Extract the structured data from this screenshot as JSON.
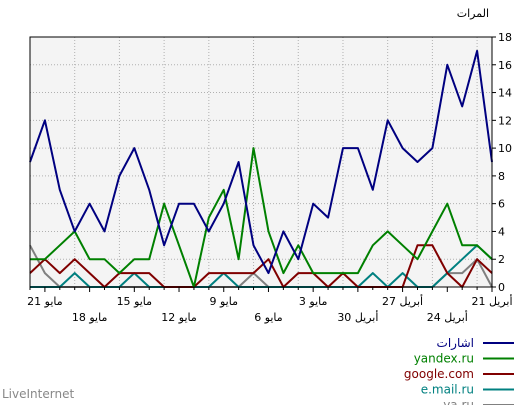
{
  "chart_data": {
    "type": "line",
    "ylabel": "المرات",
    "ylim": [
      0,
      18
    ],
    "yticks": [
      0,
      2,
      4,
      6,
      8,
      10,
      12,
      14,
      16,
      18
    ],
    "grid": true,
    "legend_position": "bottom-right",
    "x_top_labels": [
      {
        "i": 0,
        "text": "21 أبريل"
      },
      {
        "i": 6,
        "text": "27 أبريل"
      },
      {
        "i": 12,
        "text": "3 مايو"
      },
      {
        "i": 18,
        "text": "9 مايو"
      },
      {
        "i": 24,
        "text": "15 مايو"
      },
      {
        "i": 30,
        "text": "21 مايو"
      }
    ],
    "x_bottom_labels": [
      {
        "i": 3,
        "text": "24 أبريل"
      },
      {
        "i": 9,
        "text": "30 أبريل"
      },
      {
        "i": 15,
        "text": "6 مايو"
      },
      {
        "i": 21,
        "text": "12 مايو"
      },
      {
        "i": 27,
        "text": "18 مايو"
      }
    ],
    "series": [
      {
        "name": "اشارات",
        "color": "#000080",
        "values": [
          9,
          17,
          13,
          16,
          10,
          9,
          10,
          12,
          7,
          10,
          10,
          5,
          6,
          2,
          4,
          1,
          3,
          9,
          6,
          4,
          6,
          6,
          3,
          7,
          10,
          8,
          4,
          6,
          4,
          7,
          12,
          9
        ]
      },
      {
        "name": "yandex.ru",
        "color": "#008000",
        "values": [
          2,
          3,
          3,
          6,
          4,
          2,
          3,
          4,
          3,
          1,
          1,
          1,
          1,
          3,
          1,
          4,
          10,
          2,
          7,
          5,
          0,
          3,
          6,
          2,
          2,
          1,
          2,
          2,
          4,
          3,
          2,
          2
        ]
      },
      {
        "name": "google.com",
        "color": "#800000",
        "values": [
          1,
          2,
          0,
          1,
          3,
          3,
          0,
          0,
          0,
          0,
          1,
          0,
          1,
          1,
          0,
          2,
          1,
          1,
          1,
          1,
          0,
          0,
          0,
          1,
          1,
          1,
          0,
          1,
          2,
          1,
          2,
          1
        ]
      },
      {
        "name": "e.mail.ru",
        "color": "#008080",
        "values": [
          2,
          3,
          2,
          1,
          0,
          0,
          1,
          0,
          1,
          0,
          0,
          0,
          0,
          0,
          0,
          0,
          0,
          0,
          1,
          0,
          0,
          0,
          0,
          0,
          1,
          0,
          0,
          0,
          1,
          0,
          0,
          0
        ]
      },
      {
        "name": "ya.ru",
        "color": "#808080",
        "values": [
          0,
          2,
          1,
          1,
          0,
          0,
          0,
          0,
          0,
          0,
          0,
          0,
          0,
          0,
          0,
          0,
          1,
          0,
          0,
          0,
          0,
          0,
          0,
          0,
          0,
          0,
          0,
          0,
          0,
          0,
          1,
          3
        ]
      }
    ]
  },
  "footer": {
    "text": "LiveInternet"
  }
}
